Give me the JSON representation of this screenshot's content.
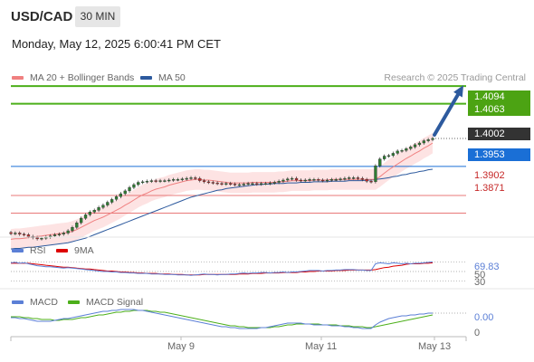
{
  "header": {
    "symbol": "USD/CAD",
    "timeframe": "30 MIN",
    "datetime": "Monday, May 12, 2025 6:00:41 PM CET"
  },
  "legend": {
    "ma20_label": "MA 20 + Bollinger Bands",
    "ma50_label": "MA 50",
    "credit": "Research © 2025 Trading Central"
  },
  "colors": {
    "ma20": "#f08080",
    "ma50": "#2d5a9e",
    "resistance": "#4caf1a",
    "support": "#e87878",
    "current": "#333333",
    "pivot": "#1a6fd6",
    "rsi": "#5b7fd6",
    "rsi_ma": "#dd0000",
    "macd": "#5b7fd6",
    "macd_signal": "#4caf1a"
  },
  "chart_data": [
    {
      "type": "candlestick",
      "panel": "price",
      "x_ticks": [
        "May 9",
        "May 11",
        "May 13"
      ],
      "ylim": [
        1.384,
        1.411
      ],
      "levels": [
        {
          "label": "1.4094",
          "value": 1.4094,
          "kind": "resistance"
        },
        {
          "label": "1.4063",
          "value": 1.4063,
          "kind": "resistance"
        },
        {
          "label": "1.4002",
          "value": 1.4002,
          "kind": "current"
        },
        {
          "label": "1.3953",
          "value": 1.3953,
          "kind": "pivot"
        },
        {
          "label": "1.3902",
          "value": 1.3902,
          "kind": "support"
        },
        {
          "label": "1.3871",
          "value": 1.3871,
          "kind": "support"
        }
      ],
      "close": [
        1.3835,
        1.3836,
        1.3834,
        1.3833,
        1.383,
        1.3828,
        1.3826,
        1.3827,
        1.3829,
        1.3831,
        1.3833,
        1.3834,
        1.3836,
        1.384,
        1.3846,
        1.3854,
        1.3862,
        1.3868,
        1.3873,
        1.3876,
        1.3881,
        1.3885,
        1.389,
        1.3895,
        1.39,
        1.3905,
        1.391,
        1.3916,
        1.3921,
        1.3925,
        1.3926,
        1.3927,
        1.3928,
        1.3927,
        1.3928,
        1.3928,
        1.3929,
        1.393,
        1.393,
        1.3931,
        1.3932,
        1.3933,
        1.3932,
        1.3928,
        1.3926,
        1.3925,
        1.3924,
        1.3923,
        1.3922,
        1.3923,
        1.3922,
        1.3921,
        1.3921,
        1.3922,
        1.3923,
        1.3923,
        1.3922,
        1.3923,
        1.3923,
        1.3924,
        1.3925,
        1.3927,
        1.3929,
        1.3931,
        1.3932,
        1.3929,
        1.3928,
        1.3929,
        1.393,
        1.393,
        1.3929,
        1.3928,
        1.3929,
        1.393,
        1.393,
        1.3931,
        1.3932,
        1.3933,
        1.3933,
        1.3932,
        1.393,
        1.3927,
        1.3926,
        1.3954,
        1.3966,
        1.3971,
        1.3972,
        1.3976,
        1.398,
        1.3981,
        1.3984,
        1.3987,
        1.3991,
        1.3994,
        1.3998,
        1.4,
        1.4002
      ],
      "ma20": [
        1.3825,
        1.3826,
        1.3826,
        1.3827,
        1.3828,
        1.3829,
        1.383,
        1.3831,
        1.3832,
        1.3833,
        1.3834,
        1.3835,
        1.3836,
        1.3837,
        1.3839,
        1.3842,
        1.3846,
        1.385,
        1.3854,
        1.3858,
        1.3861,
        1.3864,
        1.3868,
        1.3872,
        1.3876,
        1.388,
        1.3885,
        1.3889,
        1.3894,
        1.3899,
        1.3903,
        1.3906,
        1.391,
        1.3913,
        1.3915,
        1.3917,
        1.392,
        1.3922,
        1.3924,
        1.3926,
        1.3928,
        1.3929,
        1.393,
        1.393,
        1.3929,
        1.3929,
        1.3928,
        1.3927,
        1.3926,
        1.3925,
        1.3924,
        1.3924,
        1.3924,
        1.3924,
        1.3924,
        1.3925,
        1.3925,
        1.3925,
        1.3925,
        1.3925,
        1.3925,
        1.3926,
        1.3926,
        1.3927,
        1.3928,
        1.3928,
        1.3928,
        1.3928,
        1.3928,
        1.3929,
        1.3929,
        1.3929,
        1.3929,
        1.393,
        1.393,
        1.393,
        1.393,
        1.393,
        1.393,
        1.393,
        1.393,
        1.393,
        1.393,
        1.393,
        1.3935,
        1.3941,
        1.3947,
        1.3952,
        1.3957,
        1.3962,
        1.3967,
        1.3971,
        1.3976,
        1.398,
        1.3985,
        1.3989,
        1.3994
      ],
      "ma50": [
        1.3808,
        1.3809,
        1.3809,
        1.381,
        1.3811,
        1.3811,
        1.3812,
        1.3813,
        1.3814,
        1.3815,
        1.3816,
        1.3817,
        1.3818,
        1.3819,
        1.3821,
        1.3823,
        1.3825,
        1.3827,
        1.383,
        1.3833,
        1.3836,
        1.3839,
        1.3842,
        1.3845,
        1.3848,
        1.3851,
        1.3854,
        1.3857,
        1.386,
        1.3863,
        1.3866,
        1.3869,
        1.3872,
        1.3875,
        1.3878,
        1.3881,
        1.3884,
        1.3887,
        1.389,
        1.3893,
        1.3896,
        1.3899,
        1.3901,
        1.3903,
        1.3905,
        1.3907,
        1.3909,
        1.3911,
        1.3912,
        1.3914,
        1.3915,
        1.3916,
        1.3917,
        1.3918,
        1.3919,
        1.392,
        1.3921,
        1.3921,
        1.3922,
        1.3922,
        1.3923,
        1.3923,
        1.3923,
        1.3924,
        1.3924,
        1.3924,
        1.3925,
        1.3925,
        1.3925,
        1.3926,
        1.3926,
        1.3926,
        1.3926,
        1.3927,
        1.3927,
        1.3927,
        1.3927,
        1.3928,
        1.3928,
        1.3928,
        1.3928,
        1.3929,
        1.3929,
        1.393,
        1.3931,
        1.3932,
        1.3933,
        1.3935,
        1.3936,
        1.3938,
        1.3939,
        1.3941,
        1.3942,
        1.3944,
        1.3945,
        1.3947,
        1.3948
      ],
      "bb_width": 0.0018
    },
    {
      "type": "line",
      "panel": "rsi",
      "series": [
        {
          "name": "RSI"
        },
        {
          "name": "9MA"
        }
      ],
      "ylim": [
        20,
        80
      ],
      "y_ticks": [
        30,
        50,
        70
      ],
      "current_label": "69.83",
      "current_value": 69.83,
      "rsi": [
        68,
        69,
        67,
        68,
        66,
        64,
        62,
        61,
        60,
        60,
        59,
        58,
        57,
        58,
        57,
        56,
        55,
        54,
        53,
        52,
        51,
        50,
        50,
        49,
        49,
        48,
        48,
        47,
        47,
        46,
        46,
        46,
        45,
        45,
        45,
        44,
        44,
        44,
        43,
        43,
        43,
        42,
        43,
        44,
        45,
        44,
        44,
        43,
        44,
        44,
        45,
        45,
        46,
        47,
        46,
        47,
        47,
        48,
        48,
        47,
        48,
        48,
        49,
        48,
        49,
        49,
        50,
        51,
        52,
        52,
        52,
        51,
        52,
        52,
        53,
        53,
        54,
        54,
        54,
        53,
        53,
        52,
        52,
        66,
        68,
        67,
        66,
        68,
        67,
        66,
        67,
        66,
        67,
        67,
        68,
        69,
        69.83
      ],
      "ma9": [
        67,
        67,
        67,
        67,
        67,
        66,
        65,
        64,
        63,
        62,
        61,
        60,
        59,
        59,
        58,
        57,
        56,
        55,
        55,
        54,
        53,
        52,
        51,
        51,
        50,
        49,
        49,
        48,
        48,
        47,
        47,
        46,
        46,
        46,
        45,
        45,
        45,
        44,
        44,
        44,
        43,
        43,
        43,
        43,
        44,
        44,
        44,
        44,
        44,
        44,
        44,
        44,
        45,
        45,
        45,
        46,
        46,
        46,
        47,
        47,
        47,
        47,
        48,
        48,
        48,
        48,
        49,
        49,
        50,
        50,
        51,
        51,
        51,
        51,
        52,
        52,
        52,
        53,
        53,
        53,
        53,
        53,
        53,
        54,
        56,
        58,
        59,
        61,
        62,
        63,
        65,
        66,
        66,
        66,
        67,
        67,
        68
      ]
    },
    {
      "type": "line",
      "panel": "macd",
      "series": [
        {
          "name": "MACD"
        },
        {
          "name": "MACD Signal"
        }
      ],
      "ylim": [
        -0.0016,
        0.0014
      ],
      "y_ticks": [
        0
      ],
      "current_label": "0.00",
      "current_value": 0.0008,
      "macd": [
        0.0003,
        0.0003,
        0.0002,
        0.0002,
        0.0001,
        0.0,
        -0.0001,
        -0.0001,
        -0.0001,
        -0.0001,
        0.0,
        0.0001,
        0.0002,
        0.0002,
        0.0003,
        0.0004,
        0.0005,
        0.0006,
        0.0007,
        0.0008,
        0.0009,
        0.001,
        0.001,
        0.0011,
        0.0011,
        0.0012,
        0.0012,
        0.0012,
        0.0012,
        0.0011,
        0.0011,
        0.001,
        0.0009,
        0.0008,
        0.0007,
        0.0006,
        0.0005,
        0.0004,
        0.0003,
        0.0002,
        0.0001,
        0.0,
        -0.0001,
        -0.0002,
        -0.0003,
        -0.0004,
        -0.0005,
        -0.0006,
        -0.0007,
        -0.0007,
        -0.0008,
        -0.0008,
        -0.0009,
        -0.0009,
        -0.0009,
        -0.0009,
        -0.0009,
        -0.0008,
        -0.0008,
        -0.0007,
        -0.0006,
        -0.0005,
        -0.0004,
        -0.0003,
        -0.0003,
        -0.0003,
        -0.0003,
        -0.0004,
        -0.0004,
        -0.0005,
        -0.0005,
        -0.0005,
        -0.0005,
        -0.0006,
        -0.0006,
        -0.0006,
        -0.0007,
        -0.0007,
        -0.0008,
        -0.0008,
        -0.0009,
        -0.0009,
        -0.0009,
        -0.0005,
        -0.0002,
        0.0,
        0.0002,
        0.0003,
        0.0004,
        0.0005,
        0.0005,
        0.0006,
        0.0006,
        0.0007,
        0.0007,
        0.0008,
        0.0008
      ],
      "signal": [
        0.0004,
        0.0004,
        0.0004,
        0.0003,
        0.0003,
        0.0002,
        0.0002,
        0.0001,
        0.0001,
        0.0001,
        0.0,
        0.0,
        0.0001,
        0.0001,
        0.0001,
        0.0002,
        0.0003,
        0.0003,
        0.0004,
        0.0005,
        0.0006,
        0.0006,
        0.0007,
        0.0008,
        0.0009,
        0.0009,
        0.001,
        0.001,
        0.0011,
        0.0011,
        0.0011,
        0.0011,
        0.001,
        0.001,
        0.0009,
        0.0009,
        0.0008,
        0.0007,
        0.0006,
        0.0005,
        0.0004,
        0.0003,
        0.0002,
        0.0001,
        0.0,
        -0.0001,
        -0.0002,
        -0.0003,
        -0.0004,
        -0.0005,
        -0.0006,
        -0.0006,
        -0.0007,
        -0.0007,
        -0.0008,
        -0.0008,
        -0.0008,
        -0.0008,
        -0.0008,
        -0.0008,
        -0.0007,
        -0.0007,
        -0.0006,
        -0.0005,
        -0.0005,
        -0.0004,
        -0.0004,
        -0.0004,
        -0.0004,
        -0.0004,
        -0.0004,
        -0.0005,
        -0.0005,
        -0.0005,
        -0.0005,
        -0.0006,
        -0.0006,
        -0.0006,
        -0.0007,
        -0.0007,
        -0.0007,
        -0.0008,
        -0.0008,
        -0.0007,
        -0.0006,
        -0.0005,
        -0.0004,
        -0.0003,
        -0.0002,
        -0.0001,
        0.0,
        0.0001,
        0.0002,
        0.0003,
        0.0004,
        0.0005,
        0.0006
      ]
    }
  ],
  "rsi_legend": {
    "rsi_label": "RSI",
    "ma_label": "9MA"
  },
  "macd_legend": {
    "macd_label": "MACD",
    "signal_label": "MACD Signal"
  }
}
